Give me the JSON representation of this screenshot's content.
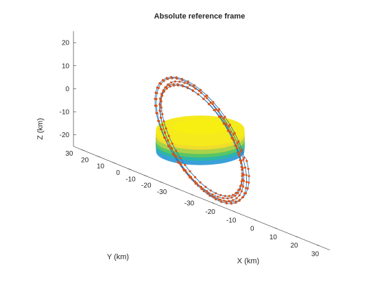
{
  "chart_data": {
    "type": "scatter",
    "projection": "3d",
    "title": "Absolute reference frame",
    "xlabel": "X (km)",
    "ylabel": "Y (km)",
    "zlabel": "Z (km)",
    "xlim": [
      -35,
      35
    ],
    "ylim": [
      -35,
      35
    ],
    "zlim": [
      -25,
      25
    ],
    "x_ticks": [
      "-30",
      "-20",
      "-10",
      "0",
      "10",
      "20",
      "30"
    ],
    "y_ticks": [
      "-30",
      "-20",
      "-10",
      "0",
      "10",
      "20",
      "30"
    ],
    "z_ticks": [
      "-20",
      "-10",
      "0",
      "10",
      "20"
    ],
    "grid": false,
    "body": {
      "shape": "ellipsoid",
      "semi_axes_km": [
        10,
        10,
        7
      ],
      "colormap": [
        "#3aa0d8",
        "#2cb5a8",
        "#5bc565",
        "#a9d24a",
        "#f0dc2c",
        "#f5ea1c"
      ]
    },
    "orbit": {
      "revolutions": 5,
      "mean_radius_km": 29,
      "radius_range_km": [
        27,
        31
      ],
      "inclination_deg": 75,
      "line_color": "#2f73b4",
      "marker_color": "#d95319"
    }
  }
}
